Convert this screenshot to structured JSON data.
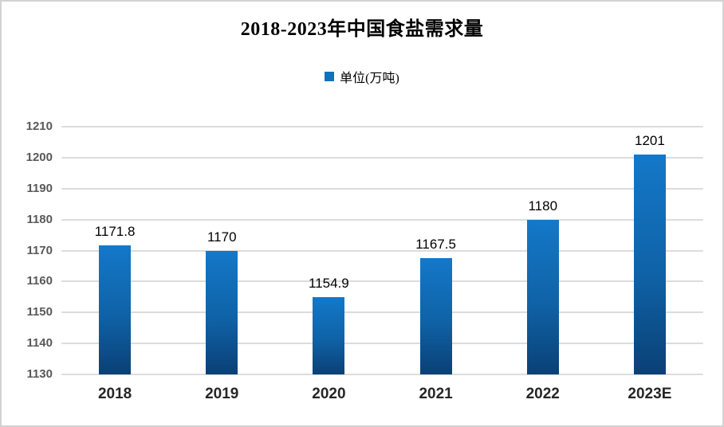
{
  "window": {
    "background": "#ffffff",
    "border_color": "#d2d2d2"
  },
  "chart_data": {
    "type": "bar",
    "title": "2018-2023年中国食盐需求量",
    "legend": {
      "label": "单位(万吨)",
      "swatch_color": "#0f72be",
      "position": "top-center"
    },
    "categories": [
      "2018",
      "2019",
      "2020",
      "2021",
      "2022",
      "2023E"
    ],
    "series": [
      {
        "name": "单位(万吨)",
        "values": [
          1171.8,
          1170,
          1154.9,
          1167.5,
          1180,
          1201
        ],
        "labels": [
          "1171.8",
          "1170",
          "1154.9",
          "1167.5",
          "1180",
          "1201"
        ]
      }
    ],
    "xlabel": "",
    "ylabel": "",
    "ylim": [
      1130,
      1210
    ],
    "ytick_step": 10,
    "grid": true,
    "legend_position": "top",
    "colors": {
      "bar_gradient_top": "#1478c9",
      "bar_gradient_mid": "#0f62a6",
      "bar_gradient_bottom": "#0a4076",
      "gridline": "#dcdcdc",
      "ytick_label": "#595959",
      "xtick_label": "#262626",
      "data_label": "#000000",
      "title": "#000000"
    }
  }
}
